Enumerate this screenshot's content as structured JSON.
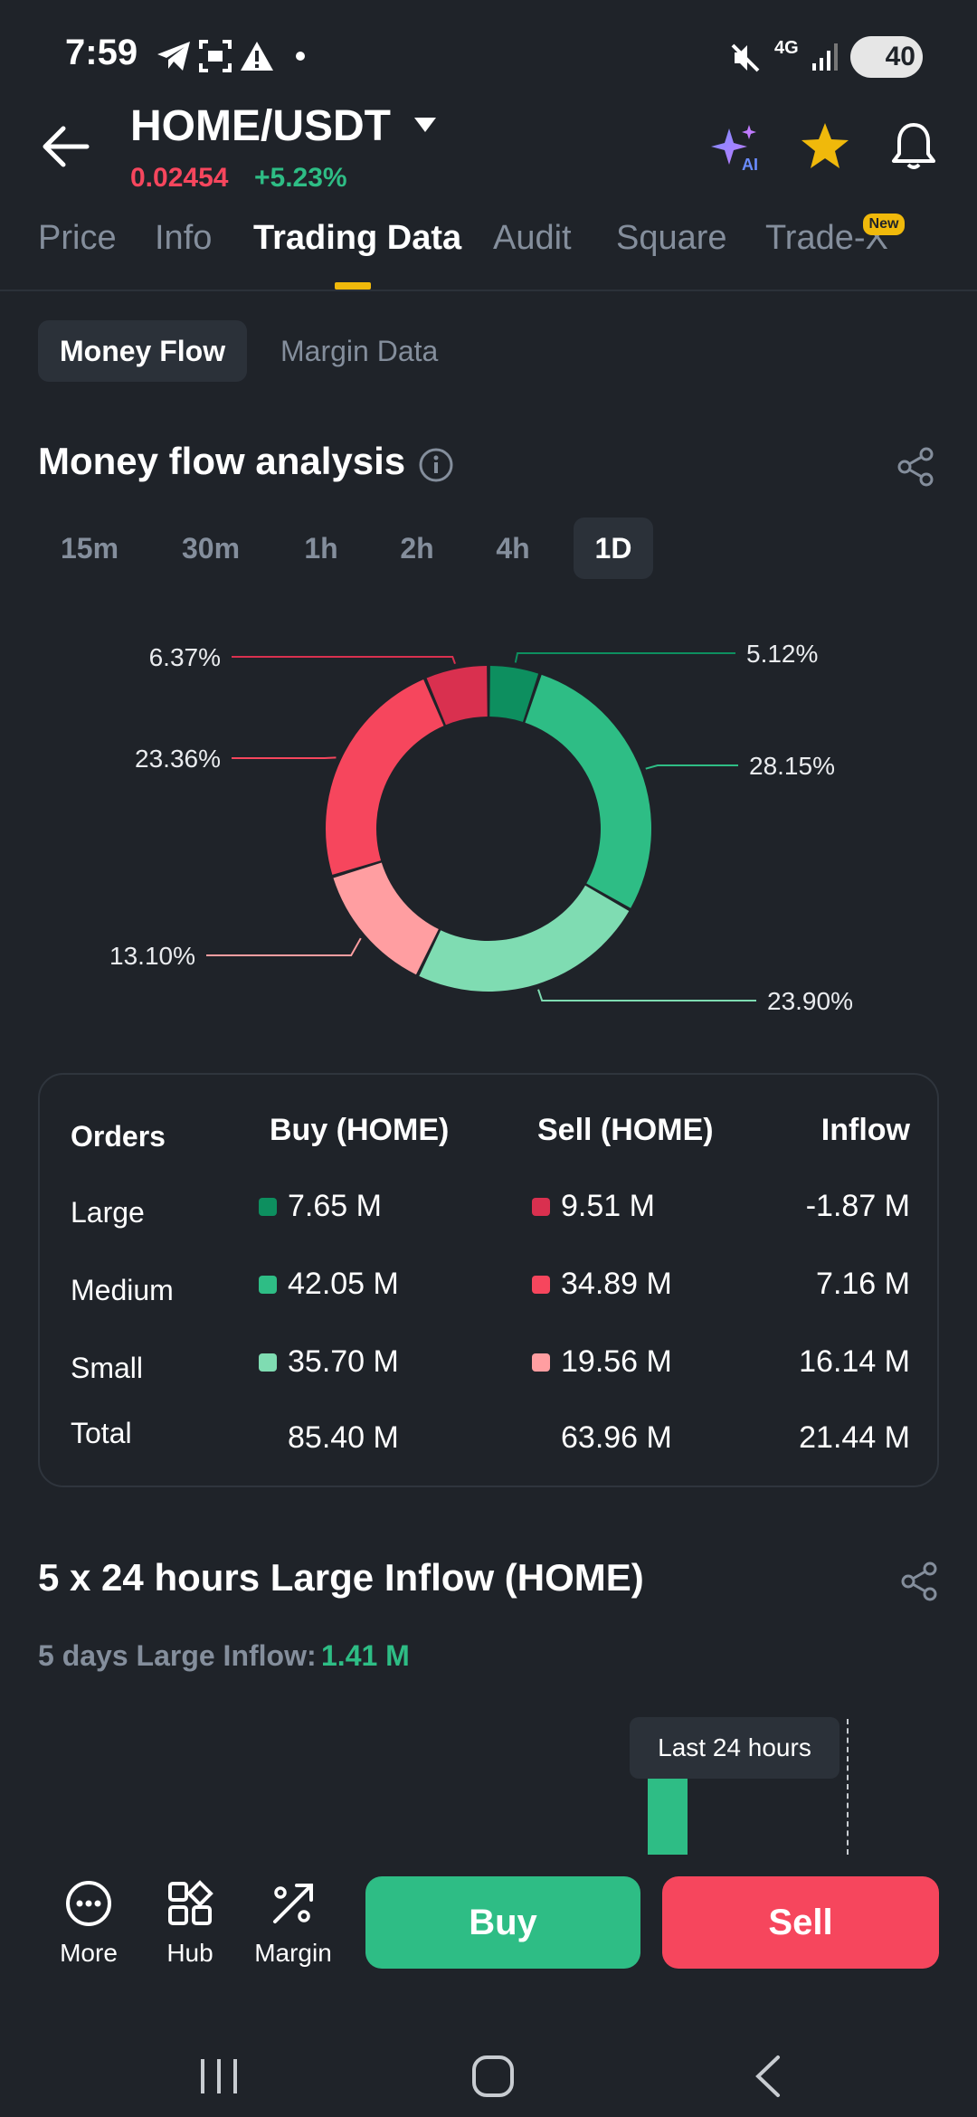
{
  "status_bar": {
    "time": "7:59",
    "network": "4G",
    "battery": "40"
  },
  "header": {
    "pair": "HOME/USDT",
    "price": "0.02454",
    "change": "+5.23%",
    "icons": [
      "back-arrow-icon",
      "ai-sparkle-icon",
      "star-icon",
      "bell-icon"
    ]
  },
  "tabs": [
    {
      "label": "Price"
    },
    {
      "label": "Info"
    },
    {
      "label": "Trading Data",
      "active": true
    },
    {
      "label": "Audit"
    },
    {
      "label": "Square"
    },
    {
      "label": "Trade-X",
      "badge": "New"
    }
  ],
  "subtabs": {
    "active": "Money Flow",
    "inactive": "Margin Data"
  },
  "money_flow": {
    "title": "Money flow analysis",
    "timeframes": [
      "15m",
      "30m",
      "1h",
      "2h",
      "4h",
      "1D"
    ],
    "active_timeframe": "1D"
  },
  "chart_data": {
    "type": "pie",
    "donut": true,
    "slices": [
      {
        "label": "5.12%",
        "value": 5.12,
        "color": "#0d8f5f"
      },
      {
        "label": "28.15%",
        "value": 28.15,
        "color": "#2ebd85"
      },
      {
        "label": "23.90%",
        "value": 23.9,
        "color": "#7fdcb2"
      },
      {
        "label": "13.10%",
        "value": 13.1,
        "color": "#ff9ea1"
      },
      {
        "label": "23.36%",
        "value": 23.36,
        "color": "#f6465d"
      },
      {
        "label": "6.37%",
        "value": 6.37,
        "color": "#d9304f"
      }
    ]
  },
  "orders_table": {
    "headers": {
      "orders": "Orders",
      "buy": "Buy (HOME)",
      "sell": "Sell (HOME)",
      "inflow": "Inflow"
    },
    "rows": [
      {
        "label": "Large",
        "buy": "7.65 M",
        "sell": "9.51 M",
        "inflow": "-1.87 M",
        "buy_color": "#0d8f5f",
        "sell_color": "#d9304f"
      },
      {
        "label": "Medium",
        "buy": "42.05 M",
        "sell": "34.89 M",
        "inflow": "7.16 M",
        "buy_color": "#2ebd85",
        "sell_color": "#f6465d"
      },
      {
        "label": "Small",
        "buy": "35.70 M",
        "sell": "19.56 M",
        "inflow": "16.14 M",
        "buy_color": "#7fdcb2",
        "sell_color": "#ff9ea1"
      }
    ],
    "total": {
      "label": "Total",
      "buy": "85.40 M",
      "sell": "63.96 M",
      "inflow": "21.44 M"
    }
  },
  "large_inflow": {
    "title": "5 x 24 hours Large Inflow (HOME)",
    "summary_label": "5 days Large Inflow:",
    "summary_value": "1.41 M",
    "tooltip": "Last 24 hours"
  },
  "actions": {
    "more": "More",
    "hub": "Hub",
    "margin": "Margin",
    "buy": "Buy",
    "sell": "Sell"
  }
}
